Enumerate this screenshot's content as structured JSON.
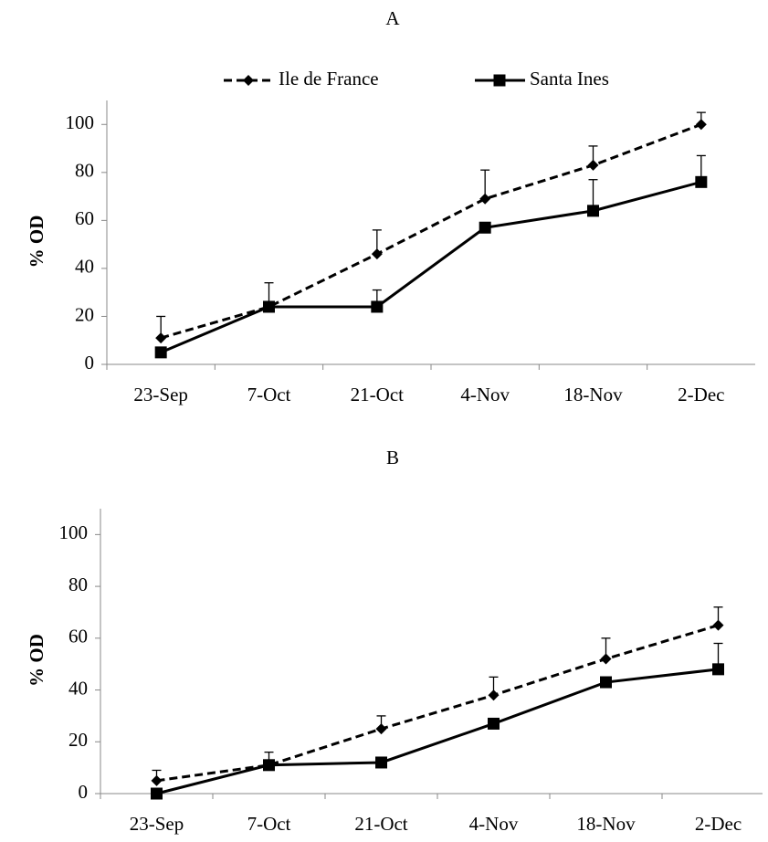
{
  "chart_data": [
    {
      "type": "line",
      "title": "A",
      "y_label": "% OD",
      "categories": [
        "23-Sep",
        "7-Oct",
        "21-Oct",
        "4-Nov",
        "18-Nov",
        "2-Dec"
      ],
      "ylim": [
        0,
        110
      ],
      "yticks": [
        0,
        20,
        40,
        60,
        80,
        100
      ],
      "legend": "top",
      "series": [
        {
          "name": "Ile de France",
          "color": "#000000",
          "dash": true,
          "marker": "diamond",
          "values": [
            11,
            24,
            46,
            69,
            83,
            100
          ],
          "errors": [
            9,
            10,
            10,
            12,
            8,
            5
          ]
        },
        {
          "name": "Santa Ines",
          "color": "#000000",
          "dash": false,
          "marker": "square",
          "values": [
            5,
            24,
            24,
            57,
            64,
            76
          ],
          "errors": [
            null,
            null,
            7,
            null,
            13,
            11
          ]
        }
      ]
    },
    {
      "type": "line",
      "title": "B",
      "y_label": "% OD",
      "categories": [
        "23-Sep",
        "7-Oct",
        "21-Oct",
        "4-Nov",
        "18-Nov",
        "2-Dec"
      ],
      "ylim": [
        0,
        110
      ],
      "yticks": [
        0,
        20,
        40,
        60,
        80,
        100
      ],
      "series": [
        {
          "color": "#000000",
          "dash": true,
          "marker": "diamond",
          "values": [
            5,
            11,
            25,
            38,
            52,
            65
          ],
          "errors": [
            4,
            5,
            5,
            7,
            8,
            7
          ]
        },
        {
          "color": "#000000",
          "dash": false,
          "marker": "square",
          "values": [
            0,
            11,
            12,
            27,
            43,
            48
          ],
          "errors": [
            null,
            null,
            null,
            null,
            null,
            10
          ]
        }
      ]
    }
  ]
}
